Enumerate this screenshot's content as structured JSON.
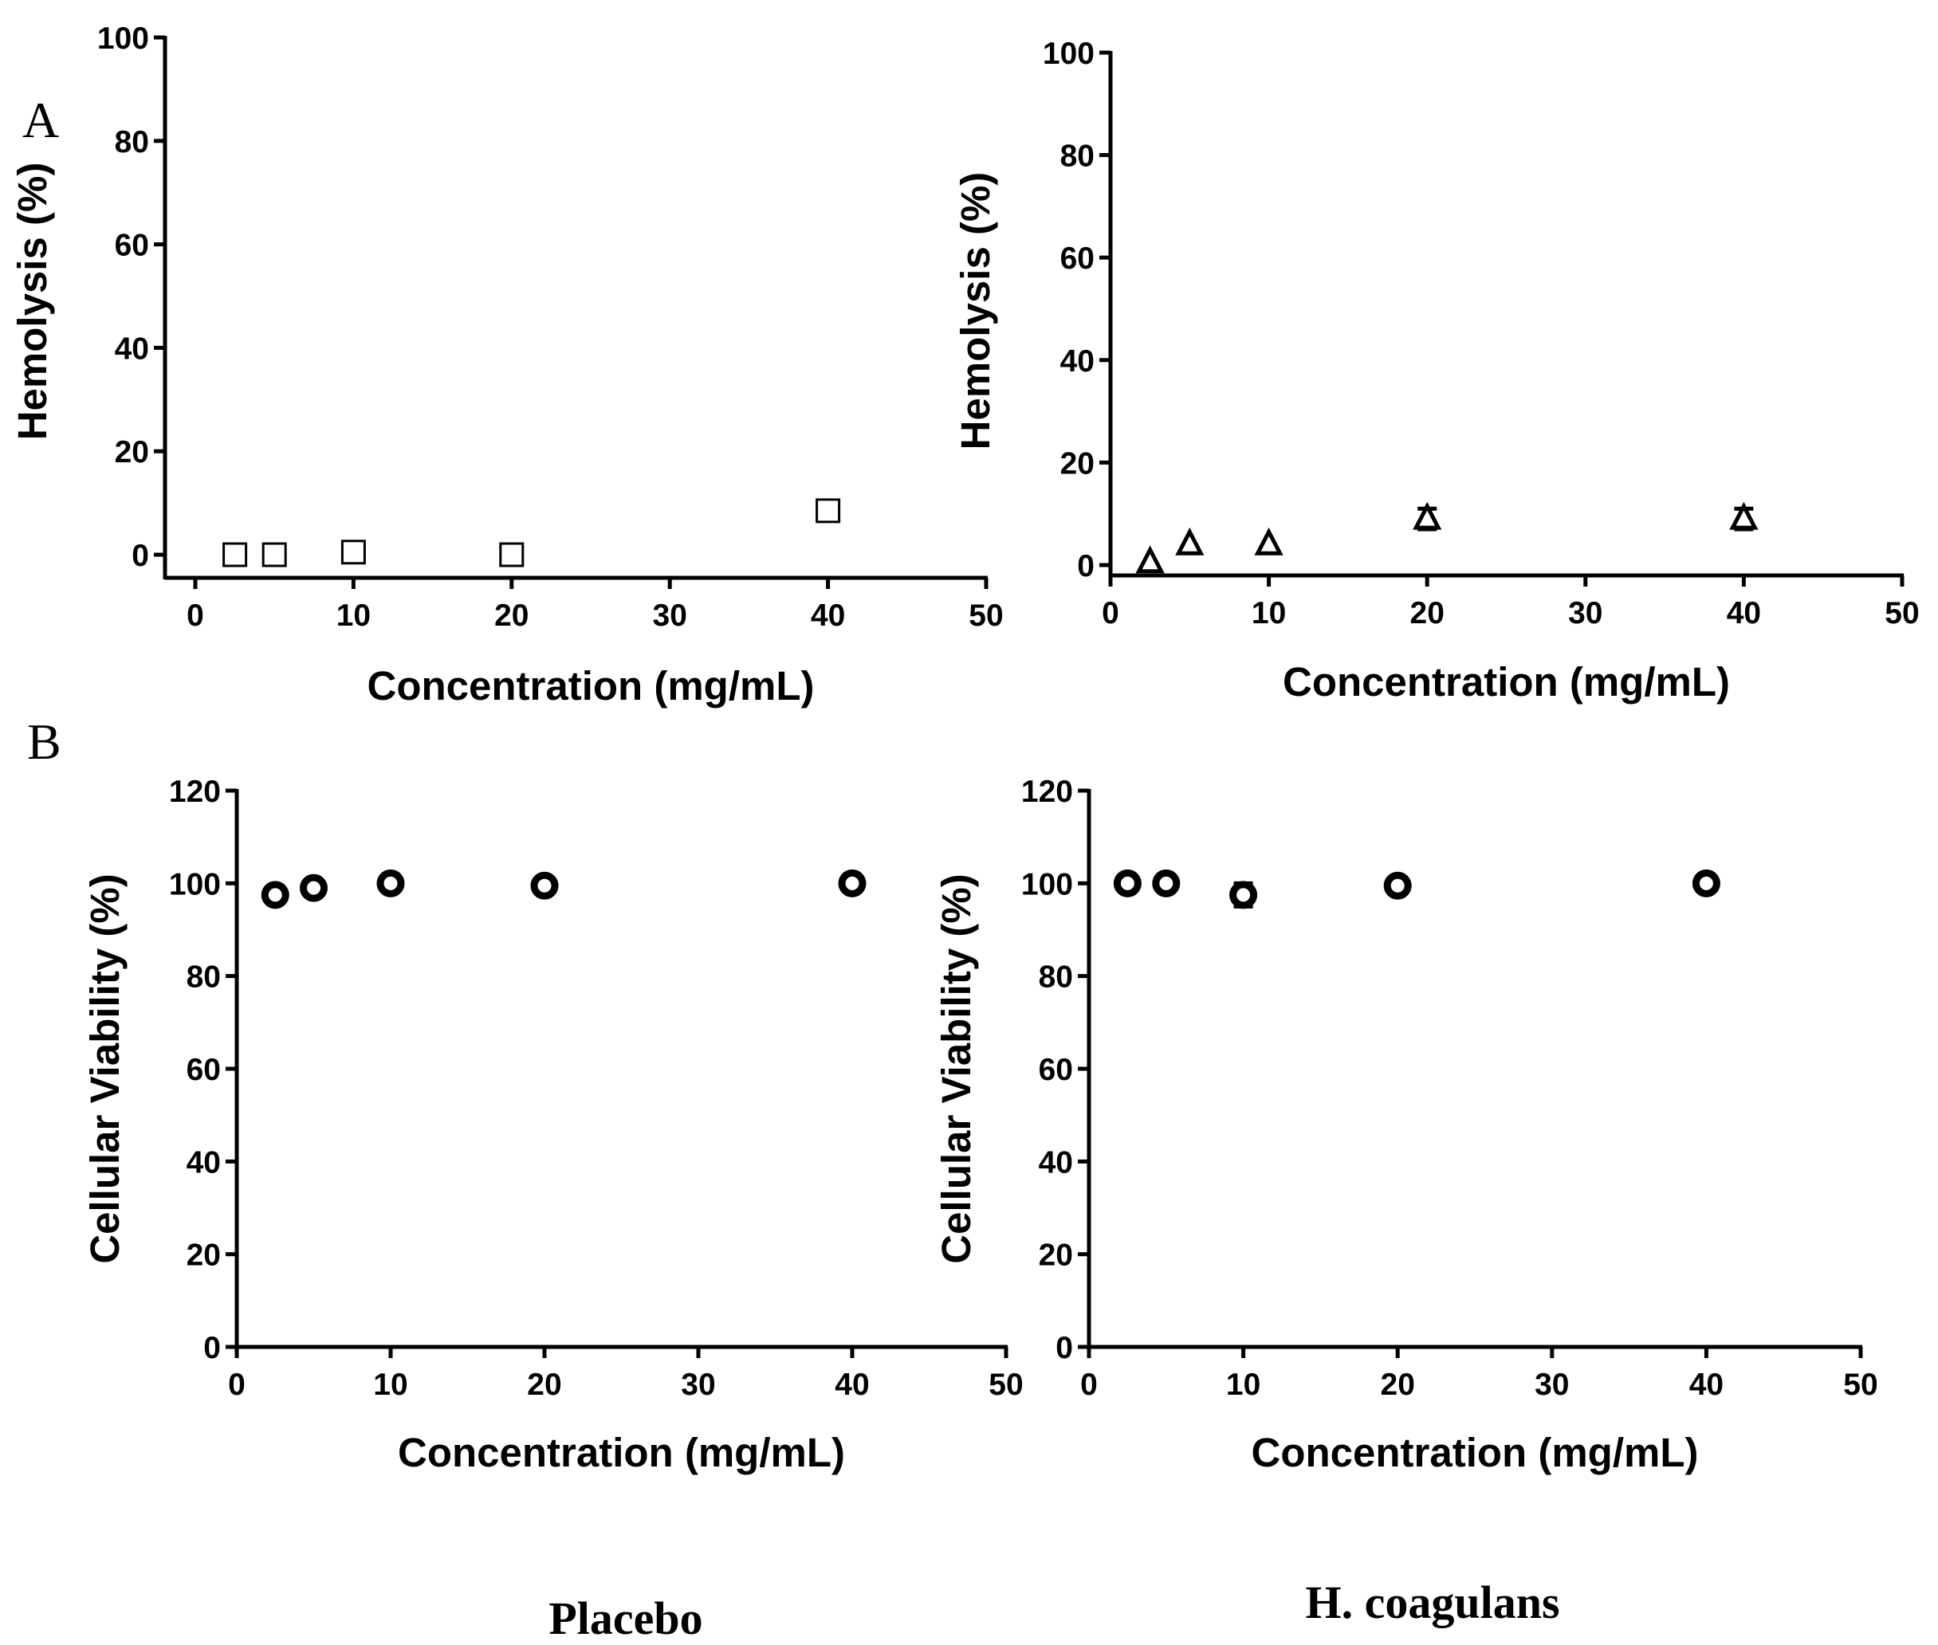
{
  "panel_letters": [
    "A",
    "B"
  ],
  "group_labels": [
    "Placebo",
    "H. coagulans"
  ],
  "chart_data": [
    {
      "type": "scatter",
      "panel": "A",
      "group": "Placebo",
      "marker": "square",
      "xlabel": "Concentration (mg/mL)",
      "ylabel": "Hemolysis (%)",
      "xlim": [
        0,
        50
      ],
      "ylim": [
        0,
        100
      ],
      "xticks": [
        "0",
        "10",
        "20",
        "30",
        "40",
        "50"
      ],
      "yticks": [
        "0",
        "20",
        "40",
        "60",
        "80",
        "100"
      ],
      "points": [
        {
          "x": 2.5,
          "y": 0,
          "err": 0
        },
        {
          "x": 5,
          "y": 0,
          "err": 0
        },
        {
          "x": 10,
          "y": 0.5,
          "err": 0
        },
        {
          "x": 20,
          "y": 0,
          "err": 0
        },
        {
          "x": 40,
          "y": 8.5,
          "err": 0
        }
      ]
    },
    {
      "type": "scatter",
      "panel": "A",
      "group": "H. coagulans",
      "marker": "triangle",
      "xlabel": "Concentration (mg/mL)",
      "ylabel": "Hemolysis (%)",
      "xlim": [
        0,
        50
      ],
      "ylim": [
        0,
        100
      ],
      "xticks": [
        "0",
        "10",
        "20",
        "30",
        "40",
        "50"
      ],
      "yticks": [
        "0",
        "20",
        "40",
        "60",
        "80",
        "100"
      ],
      "points": [
        {
          "x": 2.5,
          "y": 0.5,
          "err": 0
        },
        {
          "x": 5,
          "y": 4,
          "err": 0
        },
        {
          "x": 10,
          "y": 4,
          "err": 0
        },
        {
          "x": 20,
          "y": 9,
          "err": 2
        },
        {
          "x": 40,
          "y": 9,
          "err": 2
        }
      ]
    },
    {
      "type": "scatter",
      "panel": "B",
      "group": "Placebo",
      "marker": "circle",
      "xlabel": "Concentration (mg/mL)",
      "ylabel": "Cellular Viability (%)",
      "xlim": [
        0,
        50
      ],
      "ylim": [
        0,
        120
      ],
      "xticks": [
        "0",
        "10",
        "20",
        "30",
        "40",
        "50"
      ],
      "yticks": [
        "0",
        "20",
        "40",
        "60",
        "80",
        "100",
        "120"
      ],
      "points": [
        {
          "x": 2.5,
          "y": 97.5,
          "err": 0
        },
        {
          "x": 5,
          "y": 99,
          "err": 0
        },
        {
          "x": 10,
          "y": 100,
          "err": 0
        },
        {
          "x": 20,
          "y": 99.5,
          "err": 0
        },
        {
          "x": 40,
          "y": 100,
          "err": 0
        }
      ]
    },
    {
      "type": "scatter",
      "panel": "B",
      "group": "H. coagulans",
      "marker": "circle",
      "xlabel": "Concentration (mg/mL)",
      "ylabel": "Cellular Viability (%)",
      "xlim": [
        0,
        50
      ],
      "ylim": [
        0,
        120
      ],
      "xticks": [
        "0",
        "10",
        "20",
        "30",
        "40",
        "50"
      ],
      "yticks": [
        "0",
        "20",
        "40",
        "60",
        "80",
        "100",
        "120"
      ],
      "points": [
        {
          "x": 2.5,
          "y": 100,
          "err": 0
        },
        {
          "x": 5,
          "y": 100,
          "err": 0
        },
        {
          "x": 10,
          "y": 97.5,
          "err": 2.5
        },
        {
          "x": 20,
          "y": 99.5,
          "err": 0
        },
        {
          "x": 40,
          "y": 100,
          "err": 0
        }
      ]
    }
  ]
}
